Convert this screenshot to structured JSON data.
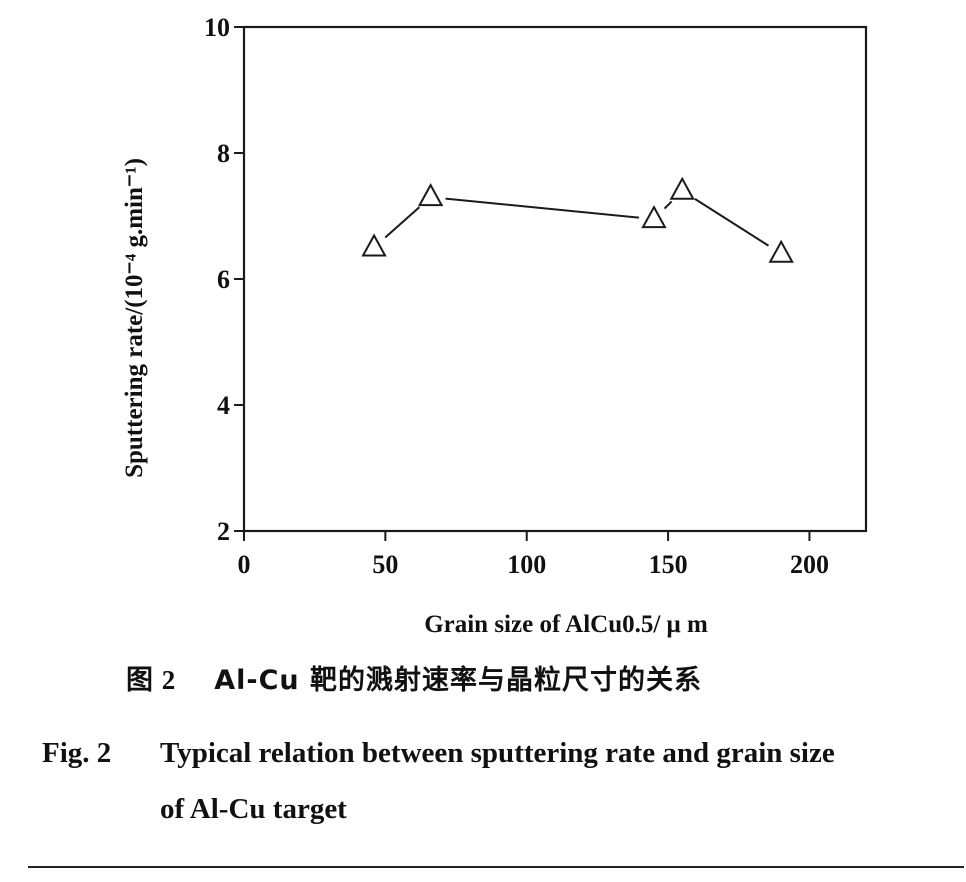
{
  "chart_data": {
    "type": "line",
    "marker": "triangle-open",
    "x": [
      46,
      66,
      145,
      155,
      190
    ],
    "series": [
      {
        "values": [
          6.5,
          7.3,
          6.95,
          7.4,
          6.4
        ]
      }
    ],
    "xlim": [
      0,
      220
    ],
    "ylim": [
      2,
      10
    ],
    "xticks": [
      0,
      50,
      100,
      150,
      200
    ],
    "yticks": [
      2,
      4,
      6,
      8,
      10
    ],
    "xlabel": "Grain size of AlCu0.5/ μ m",
    "ylabel": "Sputtering rate/(10⁻⁴ g.min⁻¹)",
    "grid": false,
    "colors": {
      "line": "#1a1a1a",
      "axis": "#1a1a1a"
    }
  },
  "caption": {
    "cn_label": "图 2",
    "cn_text": "Al-Cu 靶的溅射速率与晶粒尺寸的关系",
    "en_label": "Fig. 2",
    "en_line1": "Typical relation between sputtering rate and grain size",
    "en_line2": "of Al-Cu target"
  }
}
